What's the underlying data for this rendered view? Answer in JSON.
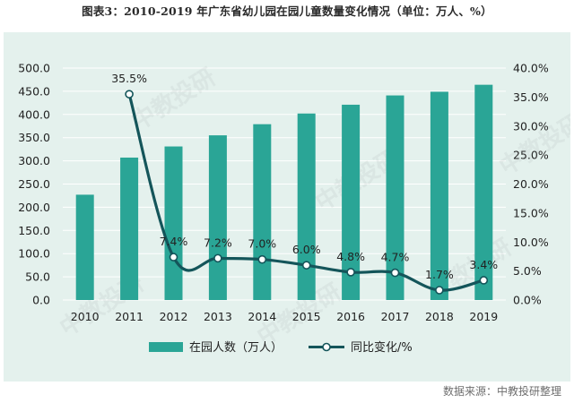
{
  "title": "图表3：2010-2019 年广东省幼儿园在园儿童数量变化情况（单位：万人、%）",
  "source": "数据来源：中教投研整理",
  "watermark": "中教投研",
  "colors": {
    "bar": "#2aa596",
    "line": "#14555a",
    "marker_fill": "#ffffff",
    "panel_bg": "#e4f1ed",
    "grid": "#ffffff",
    "text": "#222222"
  },
  "chart_data": {
    "type": "bar",
    "categories": [
      "2010",
      "2011",
      "2012",
      "2013",
      "2014",
      "2015",
      "2016",
      "2017",
      "2018",
      "2019"
    ],
    "series": [
      {
        "name": "在园人数（万人）",
        "type": "bar",
        "axis": "left",
        "values": [
          227,
          307,
          331,
          355,
          379,
          402,
          421,
          441,
          449,
          464
        ]
      },
      {
        "name": "同比变化/%",
        "type": "line",
        "smooth": true,
        "axis": "right",
        "values": [
          null,
          35.5,
          7.4,
          7.2,
          7.0,
          6.0,
          4.8,
          4.7,
          1.7,
          3.4
        ],
        "labels": [
          null,
          "35.5%",
          "7.4%",
          "7.2%",
          "7.0%",
          "6.0%",
          "4.8%",
          "4.7%",
          "1.7%",
          "3.4%"
        ]
      }
    ],
    "y_left": {
      "range": [
        0,
        500
      ],
      "ticks": [
        "0.0",
        "50.0",
        "100.0",
        "150.0",
        "200.0",
        "250.0",
        "300.0",
        "350.0",
        "400.0",
        "450.0",
        "500.0"
      ]
    },
    "y_right": {
      "range": [
        0,
        40
      ],
      "ticks": [
        "0.0%",
        "5.0%",
        "10.0%",
        "15.0%",
        "20.0%",
        "25.0%",
        "30.0%",
        "35.0%",
        "40.0%"
      ]
    },
    "grid": true,
    "legend_position": "bottom"
  }
}
